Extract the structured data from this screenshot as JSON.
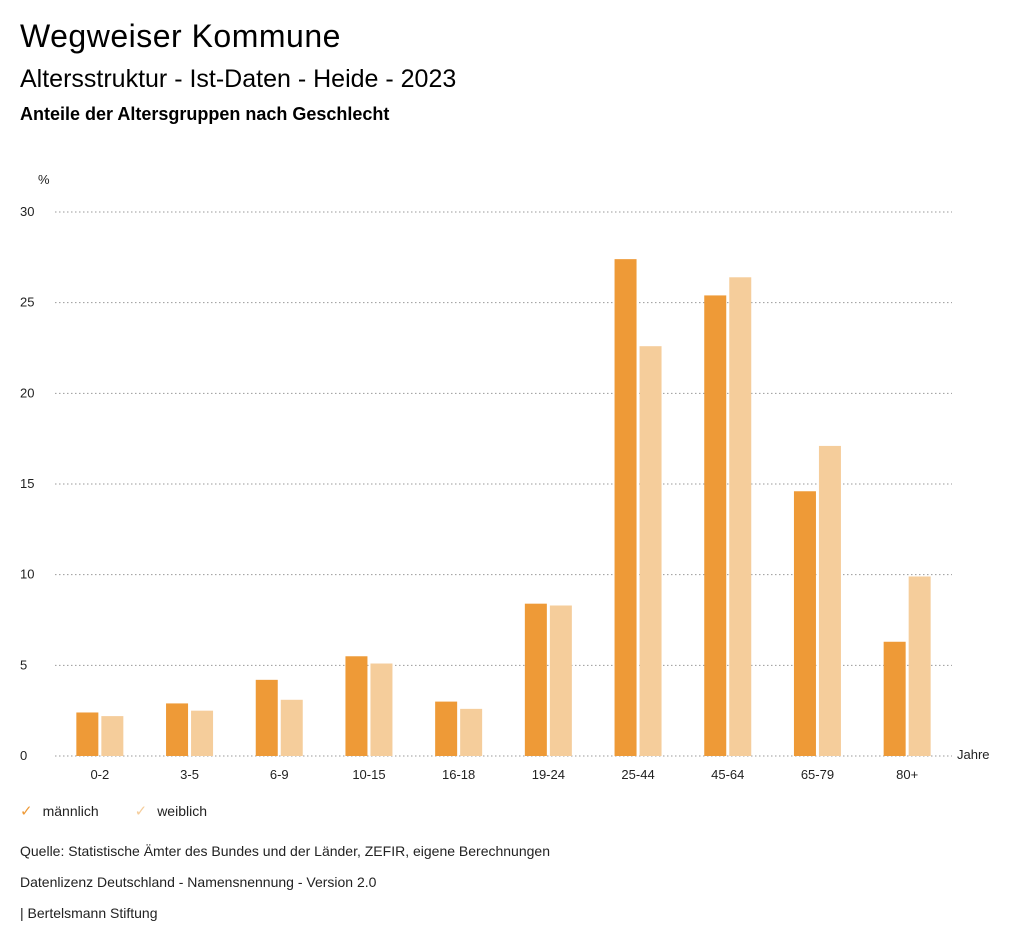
{
  "header": {
    "title": "Wegweiser Kommune",
    "subtitle": "Altersstruktur - Ist-Daten - Heide - 2023",
    "chart_title": "Anteile der Altersgruppen nach Geschlecht"
  },
  "chart_data": {
    "type": "bar",
    "title": "Anteile der Altersgruppen nach Geschlecht",
    "ylabel": "%",
    "xlabel": "Jahre",
    "ylim": [
      0,
      30
    ],
    "yticks": [
      0,
      5,
      10,
      15,
      20,
      25,
      30
    ],
    "grid": true,
    "legend_position": "bottom-left",
    "categories": [
      "0-2",
      "3-5",
      "6-9",
      "10-15",
      "16-18",
      "19-24",
      "25-44",
      "45-64",
      "65-79",
      "80+"
    ],
    "series": [
      {
        "name": "männlich",
        "color": "#ee9a37",
        "values": [
          2.4,
          2.9,
          4.2,
          5.5,
          3.0,
          8.4,
          27.4,
          25.4,
          14.6,
          6.3
        ]
      },
      {
        "name": "weiblich",
        "color": "#f5cd9b",
        "values": [
          2.2,
          2.5,
          3.1,
          5.1,
          2.6,
          8.3,
          22.6,
          26.4,
          17.1,
          9.9
        ]
      }
    ]
  },
  "legend": {
    "items": [
      {
        "label": "männlich",
        "color": "#ee9a37",
        "icon": "check-icon"
      },
      {
        "label": "weiblich",
        "color": "#f5cd9b",
        "icon": "check-icon"
      }
    ]
  },
  "footer": {
    "source": "Quelle: Statistische Ämter des Bundes und der Länder, ZEFIR, eigene Berechnungen",
    "license": "Datenlizenz Deutschland - Namensnennung - Version 2.0",
    "publisher": "| Bertelsmann Stiftung"
  }
}
